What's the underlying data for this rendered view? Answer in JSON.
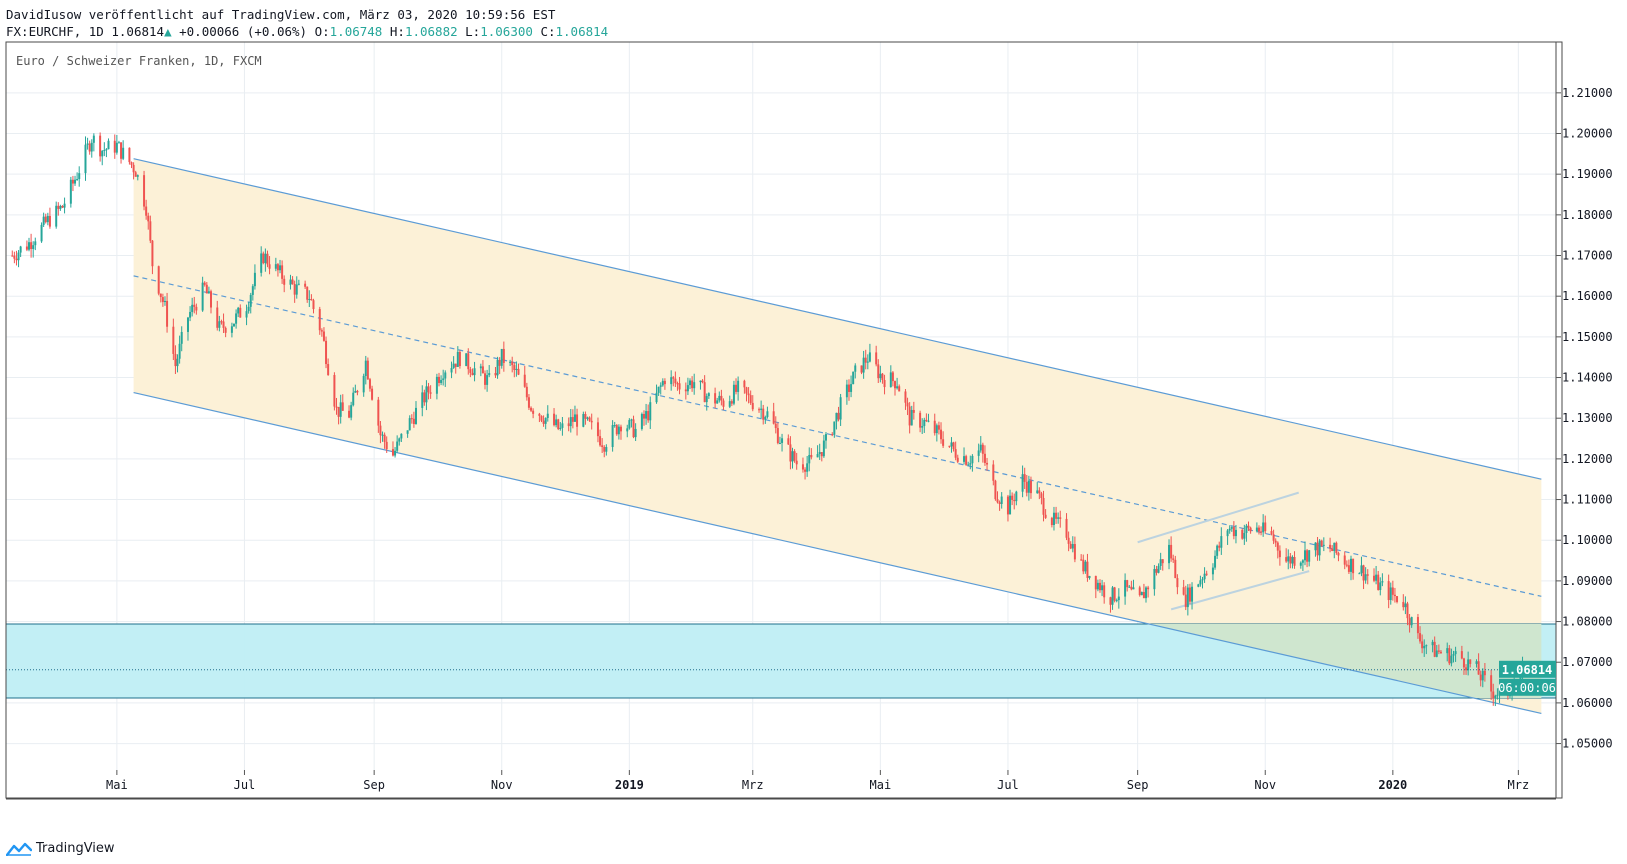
{
  "header": {
    "publisher_line": "DavidIusow veröffentlicht auf TradingView.com, März 03, 2020 10:59:56 EST",
    "symbol": "FX:EURCHF, 1D",
    "last": "1.06814",
    "change": "+0.00066 (+0.06%)",
    "o_label": "O:",
    "o_value": "1.06748",
    "h_label": "H:",
    "h_value": "1.06882",
    "l_label": "L:",
    "l_value": "1.06300",
    "c_label": "C:",
    "c_value": "1.06814"
  },
  "footer": {
    "brand": "TradingView",
    "logo_icon": "tradingview-logo-icon"
  },
  "colors": {
    "up": "#26a69a",
    "down": "#ef5350",
    "channel_line": "#5b9bd5",
    "channel_fill": "#fcf1d7",
    "zone_fill": "#bfeef4",
    "zone_border": "#1f6f8b",
    "grid": "#e9eef2",
    "last_price_bg": "#26a69a"
  },
  "chart_data": {
    "type": "candlestick",
    "title": "Euro / Schweizer Franken, 1D, FXCM",
    "y_ticks": [
      "1.21000",
      "1.20000",
      "1.19000",
      "1.18000",
      "1.17000",
      "1.16000",
      "1.15000",
      "1.14000",
      "1.13000",
      "1.12000",
      "1.11000",
      "1.10000",
      "1.09000",
      "1.08000",
      "1.07000",
      "1.06000",
      "1.05000"
    ],
    "y_range": [
      1.0435,
      1.2225
    ],
    "x_labels": [
      {
        "label": "Mai",
        "date": "2018-05-01",
        "bold": false
      },
      {
        "label": "Jul",
        "date": "2018-07-01",
        "bold": false
      },
      {
        "label": "Sep",
        "date": "2018-09-01",
        "bold": false
      },
      {
        "label": "Nov",
        "date": "2018-11-01",
        "bold": false
      },
      {
        "label": "2019",
        "date": "2019-01-01",
        "bold": true
      },
      {
        "label": "Mrz",
        "date": "2019-03-01",
        "bold": false
      },
      {
        "label": "Mai",
        "date": "2019-05-01",
        "bold": false
      },
      {
        "label": "Jul",
        "date": "2019-07-01",
        "bold": false
      },
      {
        "label": "Sep",
        "date": "2019-09-01",
        "bold": false
      },
      {
        "label": "Nov",
        "date": "2019-11-01",
        "bold": false
      },
      {
        "label": "2020",
        "date": "2020-01-01",
        "bold": true
      },
      {
        "label": "Mrz",
        "date": "2020-03-01",
        "bold": false
      }
    ],
    "last_price": "1.06814",
    "countdown": "06:00:06",
    "close_path": [
      [
        "2018-03-12",
        1.17
      ],
      [
        "2018-03-20",
        1.173
      ],
      [
        "2018-03-28",
        1.178
      ],
      [
        "2018-04-05",
        1.182
      ],
      [
        "2018-04-12",
        1.19
      ],
      [
        "2018-04-19",
        1.199
      ],
      [
        "2018-04-24",
        1.196
      ],
      [
        "2018-05-01",
        1.197
      ],
      [
        "2018-05-10",
        1.191
      ],
      [
        "2018-05-15",
        1.182
      ],
      [
        "2018-05-18",
        1.168
      ],
      [
        "2018-05-24",
        1.157
      ],
      [
        "2018-05-29",
        1.143
      ],
      [
        "2018-06-04",
        1.155
      ],
      [
        "2018-06-12",
        1.162
      ],
      [
        "2018-06-19",
        1.152
      ],
      [
        "2018-06-26",
        1.154
      ],
      [
        "2018-07-02",
        1.158
      ],
      [
        "2018-07-10",
        1.17
      ],
      [
        "2018-07-17",
        1.166
      ],
      [
        "2018-07-25",
        1.162
      ],
      [
        "2018-08-01",
        1.16
      ],
      [
        "2018-08-07",
        1.151
      ],
      [
        "2018-08-14",
        1.132
      ],
      [
        "2018-08-20",
        1.131
      ],
      [
        "2018-08-28",
        1.144
      ],
      [
        "2018-09-04",
        1.126
      ],
      [
        "2018-09-10",
        1.121
      ],
      [
        "2018-09-18",
        1.129
      ],
      [
        "2018-09-26",
        1.136
      ],
      [
        "2018-10-04",
        1.142
      ],
      [
        "2018-10-12",
        1.145
      ],
      [
        "2018-10-19",
        1.142
      ],
      [
        "2018-10-26",
        1.139
      ],
      [
        "2018-11-01",
        1.145
      ],
      [
        "2018-11-08",
        1.141
      ],
      [
        "2018-11-15",
        1.133
      ],
      [
        "2018-11-22",
        1.13
      ],
      [
        "2018-11-29",
        1.127
      ],
      [
        "2018-12-06",
        1.13
      ],
      [
        "2018-12-13",
        1.128
      ],
      [
        "2018-12-20",
        1.124
      ],
      [
        "2018-12-28",
        1.129
      ],
      [
        "2019-01-04",
        1.127
      ],
      [
        "2019-01-11",
        1.132
      ],
      [
        "2019-01-18",
        1.14
      ],
      [
        "2019-01-25",
        1.138
      ],
      [
        "2019-02-01",
        1.139
      ],
      [
        "2019-02-08",
        1.135
      ],
      [
        "2019-02-15",
        1.134
      ],
      [
        "2019-02-22",
        1.137
      ],
      [
        "2019-03-01",
        1.134
      ],
      [
        "2019-03-08",
        1.131
      ],
      [
        "2019-03-15",
        1.124
      ],
      [
        "2019-03-22",
        1.119
      ],
      [
        "2019-03-29",
        1.119
      ],
      [
        "2019-04-05",
        1.124
      ],
      [
        "2019-04-12",
        1.133
      ],
      [
        "2019-04-19",
        1.141
      ],
      [
        "2019-04-25",
        1.145
      ],
      [
        "2019-05-02",
        1.14
      ],
      [
        "2019-05-09",
        1.139
      ],
      [
        "2019-05-15",
        1.13
      ],
      [
        "2019-05-22",
        1.129
      ],
      [
        "2019-05-29",
        1.126
      ],
      [
        "2019-06-05",
        1.122
      ],
      [
        "2019-06-12",
        1.12
      ],
      [
        "2019-06-18",
        1.122
      ],
      [
        "2019-06-25",
        1.112
      ],
      [
        "2019-07-01",
        1.108
      ],
      [
        "2019-07-08",
        1.115
      ],
      [
        "2019-07-15",
        1.111
      ],
      [
        "2019-07-22",
        1.105
      ],
      [
        "2019-07-29",
        1.102
      ],
      [
        "2019-08-05",
        1.094
      ],
      [
        "2019-08-12",
        1.09
      ],
      [
        "2019-08-19",
        1.086
      ],
      [
        "2019-08-26",
        1.088
      ],
      [
        "2019-09-02",
        1.085
      ],
      [
        "2019-09-09",
        1.092
      ],
      [
        "2019-09-16",
        1.098
      ],
      [
        "2019-09-23",
        1.085
      ],
      [
        "2019-09-30",
        1.09
      ],
      [
        "2019-10-07",
        1.095
      ],
      [
        "2019-10-14",
        1.103
      ],
      [
        "2019-10-21",
        1.102
      ],
      [
        "2019-10-28",
        1.103
      ],
      [
        "2019-11-04",
        1.101
      ],
      [
        "2019-11-11",
        1.095
      ],
      [
        "2019-11-18",
        1.096
      ],
      [
        "2019-11-25",
        1.098
      ],
      [
        "2019-12-02",
        1.098
      ],
      [
        "2019-12-09",
        1.095
      ],
      [
        "2019-12-16",
        1.093
      ],
      [
        "2019-12-23",
        1.09
      ],
      [
        "2019-12-30",
        1.087
      ],
      [
        "2020-01-06",
        1.085
      ],
      [
        "2020-01-13",
        1.076
      ],
      [
        "2020-01-20",
        1.073
      ],
      [
        "2020-01-27",
        1.072
      ],
      [
        "2020-02-03",
        1.071
      ],
      [
        "2020-02-10",
        1.068
      ],
      [
        "2020-02-17",
        1.063
      ],
      [
        "2020-02-24",
        1.062
      ],
      [
        "2020-03-03",
        1.068
      ]
    ],
    "drawings": {
      "channel_upper": [
        [
          "2018-05-09",
          1.1938
        ],
        [
          "2020-03-12",
          1.115
        ]
      ],
      "channel_lower": [
        [
          "2018-05-09",
          1.1363
        ],
        [
          "2020-03-12",
          1.0574
        ]
      ],
      "channel_mid_dashed": [
        [
          "2018-05-09",
          1.165
        ],
        [
          "2020-03-12",
          1.0862
        ]
      ],
      "zone_band": {
        "from": 1.0612,
        "to": 1.0794
      },
      "small_channel_upper": [
        [
          "2019-09-01",
          1.0995
        ],
        [
          "2019-11-17",
          1.1117
        ]
      ],
      "small_channel_lower": [
        [
          "2019-09-17",
          1.083
        ],
        [
          "2019-11-22",
          1.0924
        ]
      ]
    }
  }
}
